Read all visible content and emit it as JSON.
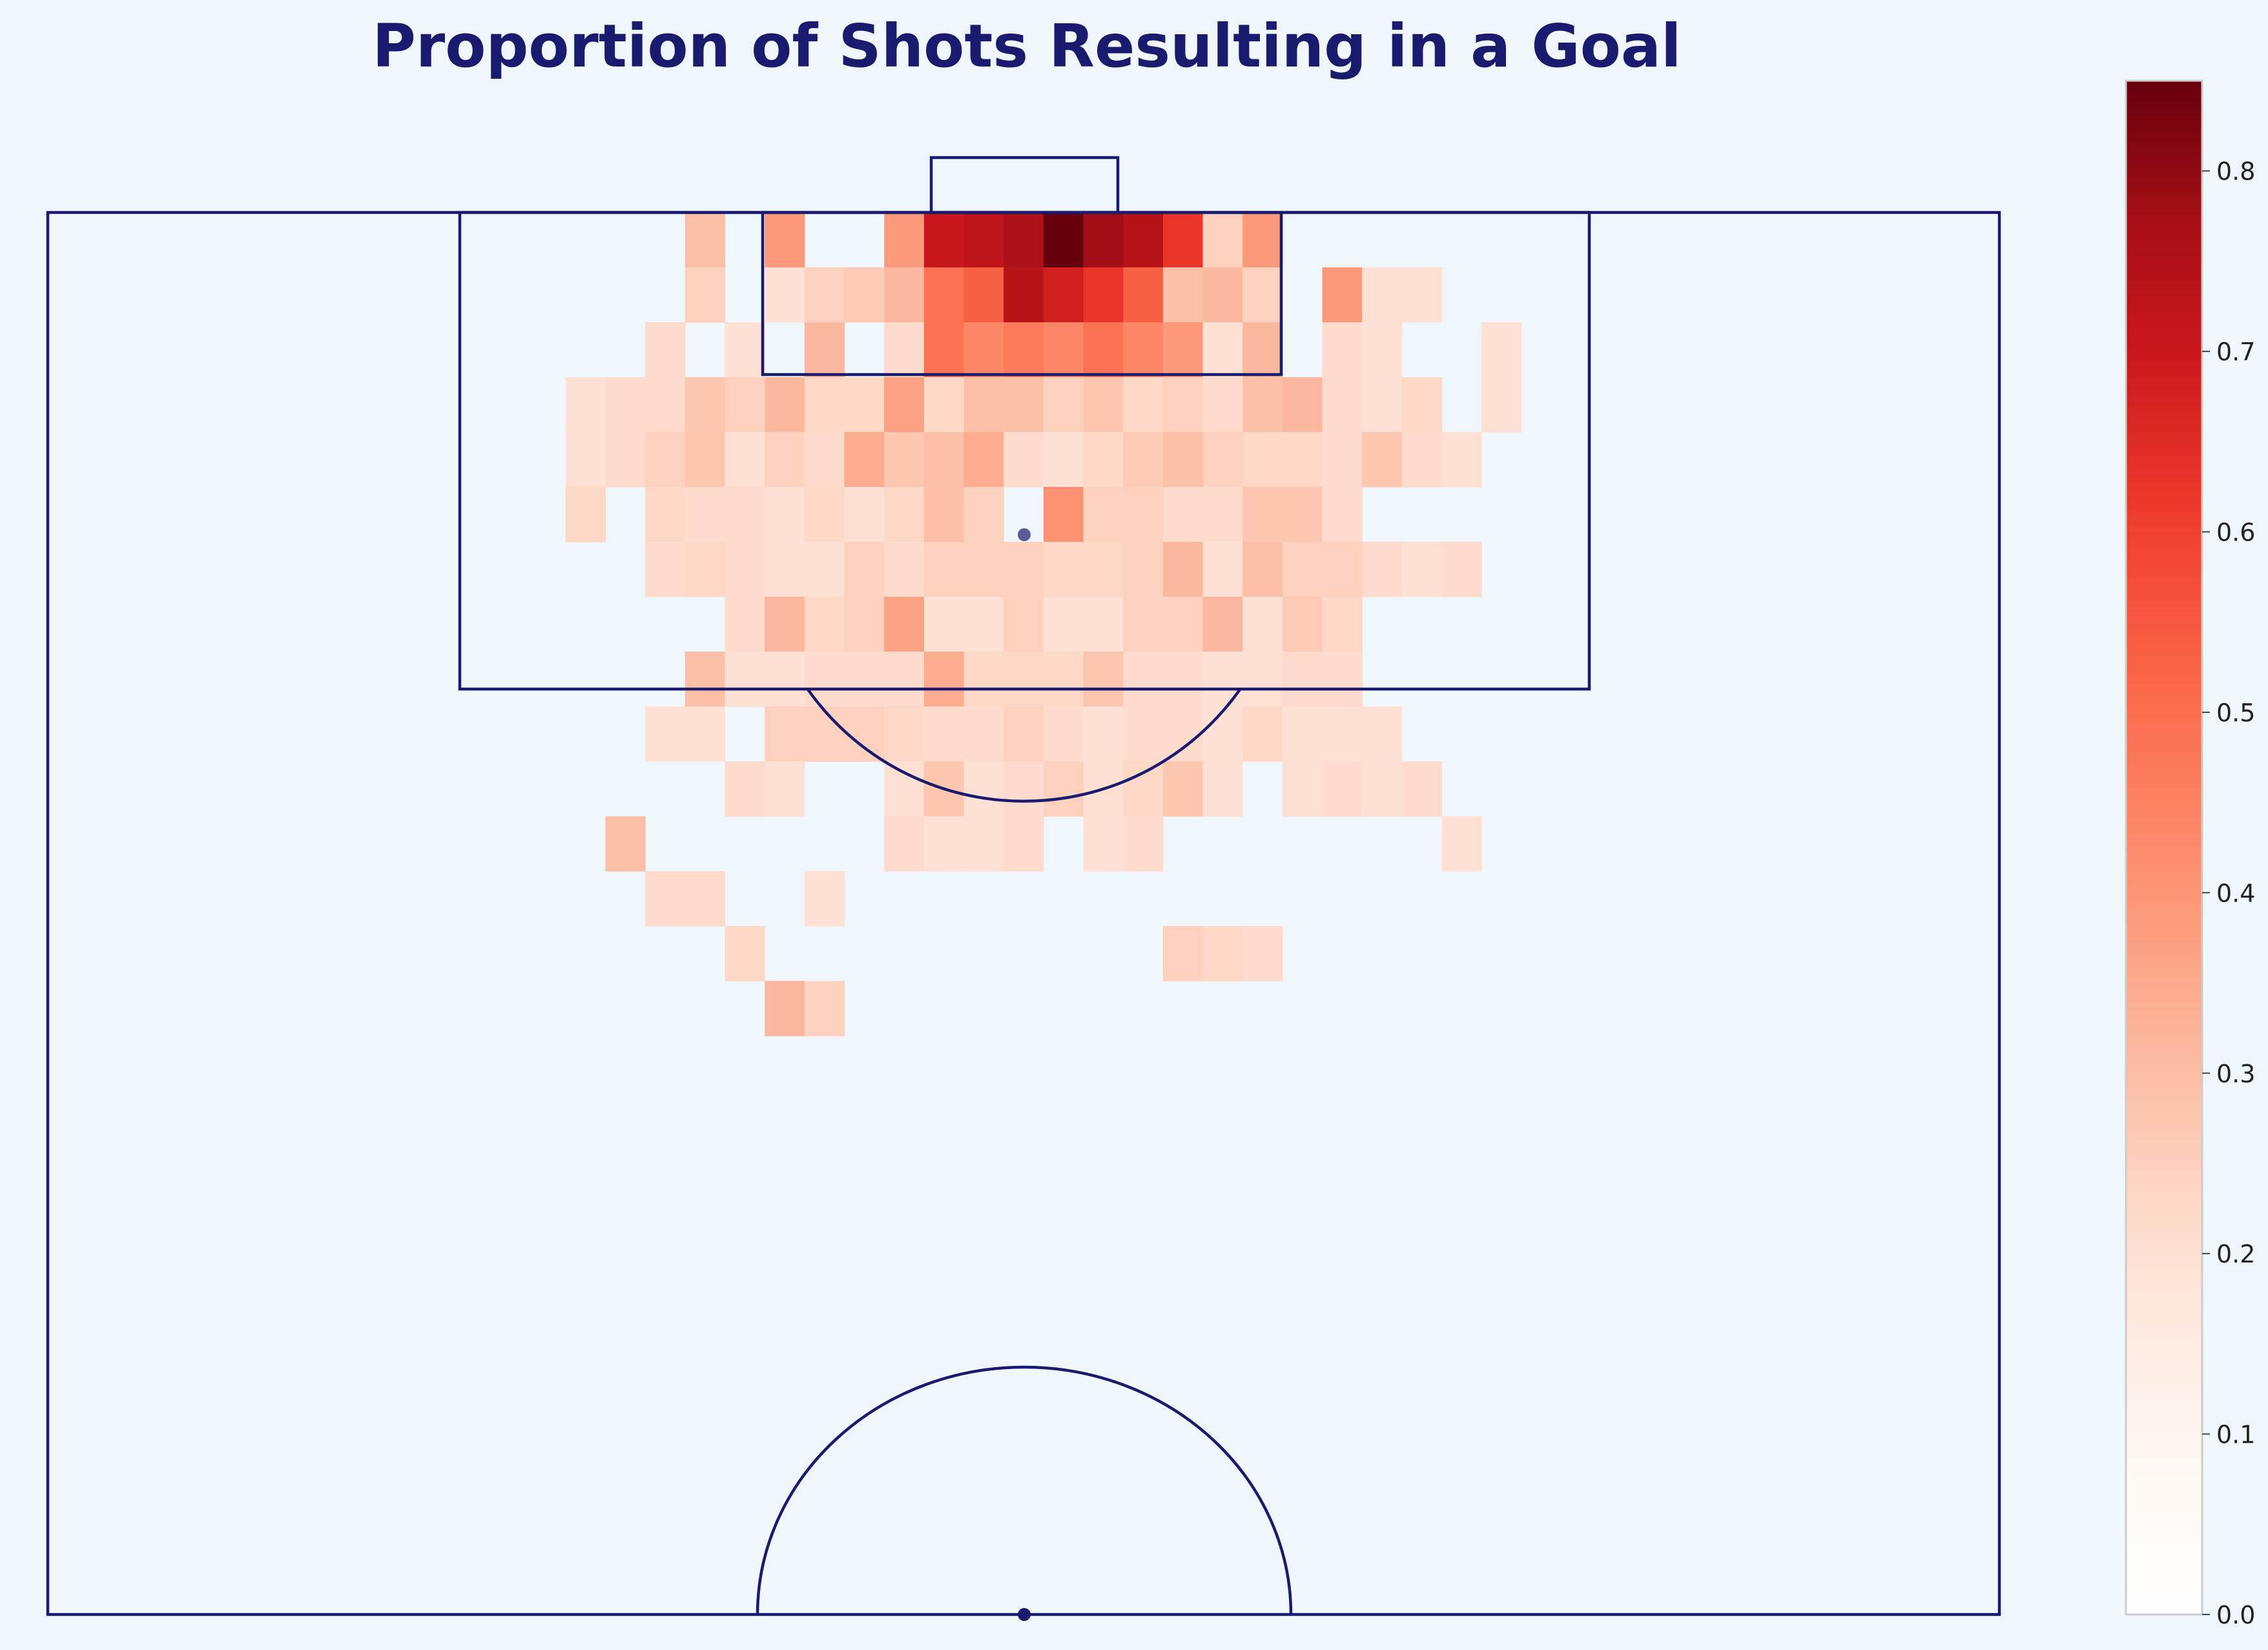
{
  "title": "Proportion of Shots Resulting in a Goal",
  "colors": {
    "background": "#eff7fd",
    "pitch_lines": "#1a1a6e",
    "title": "#1a1a6e",
    "colormap": [
      "#fff5f0",
      "#fee0d2",
      "#fcbba1",
      "#fc9272",
      "#fb6a4a",
      "#ef3b2c",
      "#cb181d",
      "#a50f15",
      "#67000d"
    ]
  },
  "chart_data": {
    "type": "heatmap",
    "colorscale": "Reds",
    "value_range": [
      0,
      0.85
    ],
    "colorbar_ticks": [
      "0.0",
      "0.1",
      "0.2",
      "0.3",
      "0.4",
      "0.5",
      "0.6",
      "0.7",
      "0.8"
    ],
    "grid_columns": 49,
    "bin_size_m": 2.5,
    "origin_note_rows": "row 0 is at the goal line",
    "cells": [
      [
        16,
        0,
        0.2
      ],
      [
        18,
        0,
        0.3
      ],
      [
        21,
        0,
        0.3
      ],
      [
        22,
        0,
        0.65
      ],
      [
        23,
        0,
        0.68
      ],
      [
        24,
        0,
        0.72
      ],
      [
        25,
        0,
        0.85
      ],
      [
        26,
        0,
        0.75
      ],
      [
        27,
        0,
        0.7
      ],
      [
        28,
        0,
        0.55
      ],
      [
        29,
        0,
        0.15
      ],
      [
        30,
        0,
        0.3
      ],
      [
        16,
        1,
        0.15
      ],
      [
        18,
        1,
        0.1
      ],
      [
        19,
        1,
        0.15
      ],
      [
        20,
        1,
        0.17
      ],
      [
        21,
        1,
        0.22
      ],
      [
        22,
        1,
        0.4
      ],
      [
        23,
        1,
        0.45
      ],
      [
        24,
        1,
        0.7
      ],
      [
        25,
        1,
        0.62
      ],
      [
        26,
        1,
        0.55
      ],
      [
        27,
        1,
        0.45
      ],
      [
        28,
        1,
        0.2
      ],
      [
        29,
        1,
        0.22
      ],
      [
        30,
        1,
        0.15
      ],
      [
        32,
        1,
        0.3
      ],
      [
        33,
        1,
        0.1
      ],
      [
        34,
        1,
        0.1
      ],
      [
        15,
        2,
        0.12
      ],
      [
        17,
        2,
        0.1
      ],
      [
        19,
        2,
        0.22
      ],
      [
        21,
        2,
        0.12
      ],
      [
        22,
        2,
        0.4
      ],
      [
        23,
        2,
        0.35
      ],
      [
        24,
        2,
        0.38
      ],
      [
        25,
        2,
        0.35
      ],
      [
        26,
        2,
        0.4
      ],
      [
        27,
        2,
        0.35
      ],
      [
        28,
        2,
        0.3
      ],
      [
        29,
        2,
        0.1
      ],
      [
        30,
        2,
        0.22
      ],
      [
        32,
        2,
        0.12
      ],
      [
        33,
        2,
        0.1
      ],
      [
        36,
        2,
        0.1
      ],
      [
        13,
        3,
        0.1
      ],
      [
        14,
        3,
        0.12
      ],
      [
        15,
        3,
        0.12
      ],
      [
        16,
        3,
        0.18
      ],
      [
        17,
        3,
        0.15
      ],
      [
        18,
        3,
        0.22
      ],
      [
        19,
        3,
        0.13
      ],
      [
        20,
        3,
        0.13
      ],
      [
        21,
        3,
        0.28
      ],
      [
        22,
        3,
        0.13
      ],
      [
        23,
        3,
        0.2
      ],
      [
        24,
        3,
        0.2
      ],
      [
        25,
        3,
        0.15
      ],
      [
        26,
        3,
        0.18
      ],
      [
        27,
        3,
        0.13
      ],
      [
        28,
        3,
        0.15
      ],
      [
        29,
        3,
        0.12
      ],
      [
        30,
        3,
        0.2
      ],
      [
        31,
        3,
        0.22
      ],
      [
        32,
        3,
        0.12
      ],
      [
        33,
        3,
        0.1
      ],
      [
        34,
        3,
        0.13
      ],
      [
        36,
        3,
        0.1
      ],
      [
        13,
        4,
        0.1
      ],
      [
        14,
        4,
        0.12
      ],
      [
        15,
        4,
        0.15
      ],
      [
        16,
        4,
        0.18
      ],
      [
        17,
        4,
        0.1
      ],
      [
        18,
        4,
        0.15
      ],
      [
        19,
        4,
        0.12
      ],
      [
        20,
        4,
        0.25
      ],
      [
        21,
        4,
        0.18
      ],
      [
        22,
        4,
        0.2
      ],
      [
        23,
        4,
        0.25
      ],
      [
        24,
        4,
        0.12
      ],
      [
        25,
        4,
        0.1
      ],
      [
        26,
        4,
        0.13
      ],
      [
        27,
        4,
        0.17
      ],
      [
        28,
        4,
        0.2
      ],
      [
        29,
        4,
        0.15
      ],
      [
        30,
        4,
        0.13
      ],
      [
        31,
        4,
        0.13
      ],
      [
        32,
        4,
        0.12
      ],
      [
        33,
        4,
        0.18
      ],
      [
        34,
        4,
        0.12
      ],
      [
        35,
        4,
        0.1
      ],
      [
        13,
        5,
        0.13
      ],
      [
        15,
        5,
        0.13
      ],
      [
        16,
        5,
        0.12
      ],
      [
        17,
        5,
        0.12
      ],
      [
        18,
        5,
        0.1
      ],
      [
        19,
        5,
        0.13
      ],
      [
        20,
        5,
        0.1
      ],
      [
        21,
        5,
        0.13
      ],
      [
        22,
        5,
        0.2
      ],
      [
        23,
        5,
        0.15
      ],
      [
        25,
        5,
        0.32
      ],
      [
        26,
        5,
        0.15
      ],
      [
        27,
        5,
        0.15
      ],
      [
        28,
        5,
        0.12
      ],
      [
        29,
        5,
        0.12
      ],
      [
        30,
        5,
        0.18
      ],
      [
        31,
        5,
        0.18
      ],
      [
        32,
        5,
        0.12
      ],
      [
        15,
        6,
        0.12
      ],
      [
        16,
        6,
        0.13
      ],
      [
        17,
        6,
        0.12
      ],
      [
        18,
        6,
        0.1
      ],
      [
        19,
        6,
        0.1
      ],
      [
        20,
        6,
        0.15
      ],
      [
        21,
        6,
        0.12
      ],
      [
        22,
        6,
        0.15
      ],
      [
        23,
        6,
        0.15
      ],
      [
        24,
        6,
        0.15
      ],
      [
        25,
        6,
        0.13
      ],
      [
        26,
        6,
        0.13
      ],
      [
        27,
        6,
        0.15
      ],
      [
        28,
        6,
        0.22
      ],
      [
        29,
        6,
        0.1
      ],
      [
        30,
        6,
        0.2
      ],
      [
        31,
        6,
        0.15
      ],
      [
        32,
        6,
        0.15
      ],
      [
        33,
        6,
        0.12
      ],
      [
        34,
        6,
        0.1
      ],
      [
        35,
        6,
        0.12
      ],
      [
        17,
        7,
        0.12
      ],
      [
        18,
        7,
        0.22
      ],
      [
        19,
        7,
        0.13
      ],
      [
        20,
        7,
        0.15
      ],
      [
        21,
        7,
        0.28
      ],
      [
        22,
        7,
        0.1
      ],
      [
        23,
        7,
        0.1
      ],
      [
        24,
        7,
        0.15
      ],
      [
        25,
        7,
        0.1
      ],
      [
        26,
        7,
        0.1
      ],
      [
        27,
        7,
        0.15
      ],
      [
        28,
        7,
        0.15
      ],
      [
        29,
        7,
        0.22
      ],
      [
        30,
        7,
        0.1
      ],
      [
        31,
        7,
        0.17
      ],
      [
        32,
        7,
        0.13
      ],
      [
        16,
        8,
        0.2
      ],
      [
        17,
        8,
        0.1
      ],
      [
        18,
        8,
        0.1
      ],
      [
        19,
        8,
        0.12
      ],
      [
        20,
        8,
        0.12
      ],
      [
        21,
        8,
        0.12
      ],
      [
        22,
        8,
        0.25
      ],
      [
        23,
        8,
        0.13
      ],
      [
        24,
        8,
        0.13
      ],
      [
        25,
        8,
        0.13
      ],
      [
        26,
        8,
        0.18
      ],
      [
        27,
        8,
        0.12
      ],
      [
        28,
        8,
        0.12
      ],
      [
        29,
        8,
        0.1
      ],
      [
        30,
        8,
        0.1
      ],
      [
        31,
        8,
        0.12
      ],
      [
        32,
        8,
        0.12
      ],
      [
        15,
        9,
        0.1
      ],
      [
        16,
        9,
        0.1
      ],
      [
        18,
        9,
        0.15
      ],
      [
        19,
        9,
        0.15
      ],
      [
        20,
        9,
        0.15
      ],
      [
        21,
        9,
        0.13
      ],
      [
        22,
        9,
        0.12
      ],
      [
        23,
        9,
        0.12
      ],
      [
        24,
        9,
        0.15
      ],
      [
        25,
        9,
        0.12
      ],
      [
        26,
        9,
        0.1
      ],
      [
        27,
        9,
        0.12
      ],
      [
        28,
        9,
        0.12
      ],
      [
        29,
        9,
        0.1
      ],
      [
        30,
        9,
        0.13
      ],
      [
        31,
        9,
        0.1
      ],
      [
        32,
        9,
        0.1
      ],
      [
        33,
        9,
        0.1
      ],
      [
        17,
        10,
        0.12
      ],
      [
        18,
        10,
        0.1
      ],
      [
        21,
        10,
        0.1
      ],
      [
        22,
        10,
        0.18
      ],
      [
        23,
        10,
        0.1
      ],
      [
        24,
        10,
        0.12
      ],
      [
        25,
        10,
        0.15
      ],
      [
        26,
        10,
        0.1
      ],
      [
        27,
        10,
        0.13
      ],
      [
        28,
        10,
        0.18
      ],
      [
        29,
        10,
        0.1
      ],
      [
        31,
        10,
        0.1
      ],
      [
        32,
        10,
        0.12
      ],
      [
        33,
        10,
        0.1
      ],
      [
        34,
        10,
        0.12
      ],
      [
        14,
        11,
        0.2
      ],
      [
        21,
        11,
        0.12
      ],
      [
        22,
        11,
        0.1
      ],
      [
        23,
        11,
        0.1
      ],
      [
        24,
        11,
        0.12
      ],
      [
        26,
        11,
        0.1
      ],
      [
        27,
        11,
        0.12
      ],
      [
        35,
        11,
        0.1
      ],
      [
        15,
        12,
        0.12
      ],
      [
        16,
        12,
        0.12
      ],
      [
        19,
        12,
        0.1
      ],
      [
        17,
        13,
        0.13
      ],
      [
        28,
        13,
        0.15
      ],
      [
        29,
        13,
        0.13
      ],
      [
        30,
        13,
        0.12
      ],
      [
        18,
        14,
        0.22
      ],
      [
        19,
        14,
        0.15
      ]
    ]
  }
}
